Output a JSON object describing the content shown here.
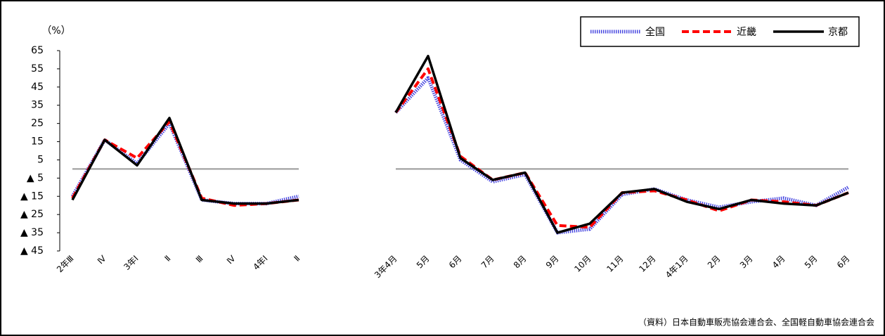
{
  "chart_data": {
    "type": "line",
    "unit_label": "（%）",
    "source": "（資料）日本自動車販売協会連合会、全国軽自動車協会連合会",
    "categories": [
      "2年Ⅲ",
      "Ⅳ",
      "3年Ⅰ",
      "Ⅱ",
      "Ⅲ",
      "Ⅳ",
      "4年Ⅰ",
      "Ⅱ",
      null,
      null,
      "3年4月",
      "5月",
      "6月",
      "7月",
      "8月",
      "9月",
      "10月",
      "11月",
      "12月",
      "4年1月",
      "2月",
      "3月",
      "4月",
      "5月",
      "6月"
    ],
    "series": [
      {
        "name": "全国",
        "color": "#4a4ae0",
        "style": "dotted",
        "values": [
          -15,
          16,
          3,
          25,
          -17,
          -19,
          -19,
          -15,
          null,
          null,
          31,
          50,
          5,
          -7,
          -3,
          -35,
          -33,
          -14,
          -11,
          -17,
          -21,
          -18,
          -16,
          -20,
          -10
        ]
      },
      {
        "name": "近畿",
        "color": "#ff0000",
        "style": "dashed",
        "values": [
          -16,
          16,
          6,
          26,
          -16,
          -20,
          -19,
          -17,
          null,
          null,
          31,
          55,
          7,
          -6,
          -2,
          -31,
          -32,
          -13,
          -12,
          -17,
          -23,
          -17,
          -18,
          -20,
          -13
        ]
      },
      {
        "name": "京都",
        "color": "#000000",
        "style": "solid",
        "values": [
          -17,
          16,
          2,
          28,
          -17,
          -19,
          -19,
          -17,
          null,
          null,
          31,
          62,
          6,
          -6,
          -2,
          -35,
          -30,
          -13,
          -11,
          -18,
          -22,
          -17,
          -19,
          -20,
          -13
        ]
      }
    ],
    "ylim": [
      -45,
      65
    ],
    "yticks": [
      65,
      55,
      45,
      35,
      25,
      15,
      5,
      {
        "value": -5,
        "label": "▲ 5"
      },
      {
        "value": -15,
        "label": "▲ 15"
      },
      {
        "value": -25,
        "label": "▲ 25"
      },
      {
        "value": -35,
        "label": "▲ 35"
      },
      {
        "value": -45,
        "label": "▲ 45"
      }
    ],
    "legend": "top-right"
  }
}
